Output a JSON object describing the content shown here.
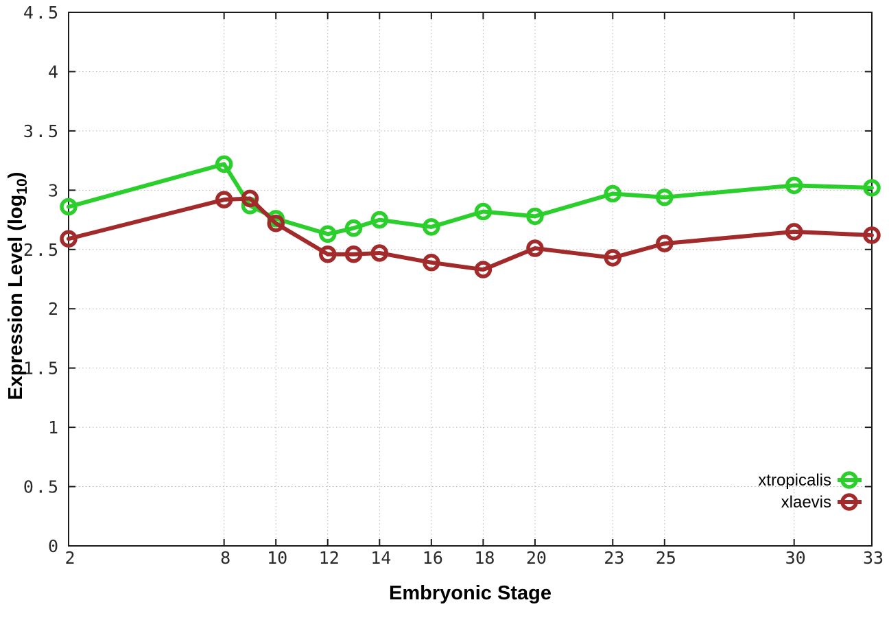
{
  "chart_data": {
    "type": "line",
    "title": "",
    "xlabel": "Embryonic Stage",
    "ylabel": {
      "main": "Expression Level (log",
      "sub": "10",
      "after": ")"
    },
    "x": [
      2,
      8,
      9,
      10,
      12,
      13,
      14,
      16,
      18,
      20,
      23,
      25,
      30,
      33
    ],
    "x_tick_labels": [
      2,
      8,
      10,
      12,
      14,
      16,
      18,
      20,
      23,
      25,
      30,
      33
    ],
    "y_tick_labels": [
      0,
      0.5,
      1,
      1.5,
      2,
      2.5,
      3,
      3.5,
      4,
      4.5
    ],
    "xlim": [
      2,
      33
    ],
    "ylim": [
      0,
      4.5
    ],
    "grid": true,
    "legend_position": "bottom-right",
    "series": [
      {
        "name": "xtropicalis",
        "color": "#2bcf2b",
        "values": [
          2.86,
          3.22,
          2.87,
          2.76,
          2.63,
          2.68,
          2.75,
          2.69,
          2.82,
          2.78,
          2.97,
          2.94,
          3.04,
          3.02
        ]
      },
      {
        "name": "xlaevis",
        "color": "#a32a2a",
        "values": [
          2.59,
          2.92,
          2.93,
          2.72,
          2.46,
          2.46,
          2.47,
          2.39,
          2.33,
          2.51,
          2.43,
          2.55,
          2.65,
          2.62
        ]
      }
    ]
  },
  "colors": {
    "border": "#1a1a1a",
    "grid": "#b3b3b3",
    "tick": "#1a1a1a",
    "tick_label": "#2a2a2a",
    "axis_title": "#000000",
    "legend_text": "#000000",
    "background": "#ffffff"
  }
}
